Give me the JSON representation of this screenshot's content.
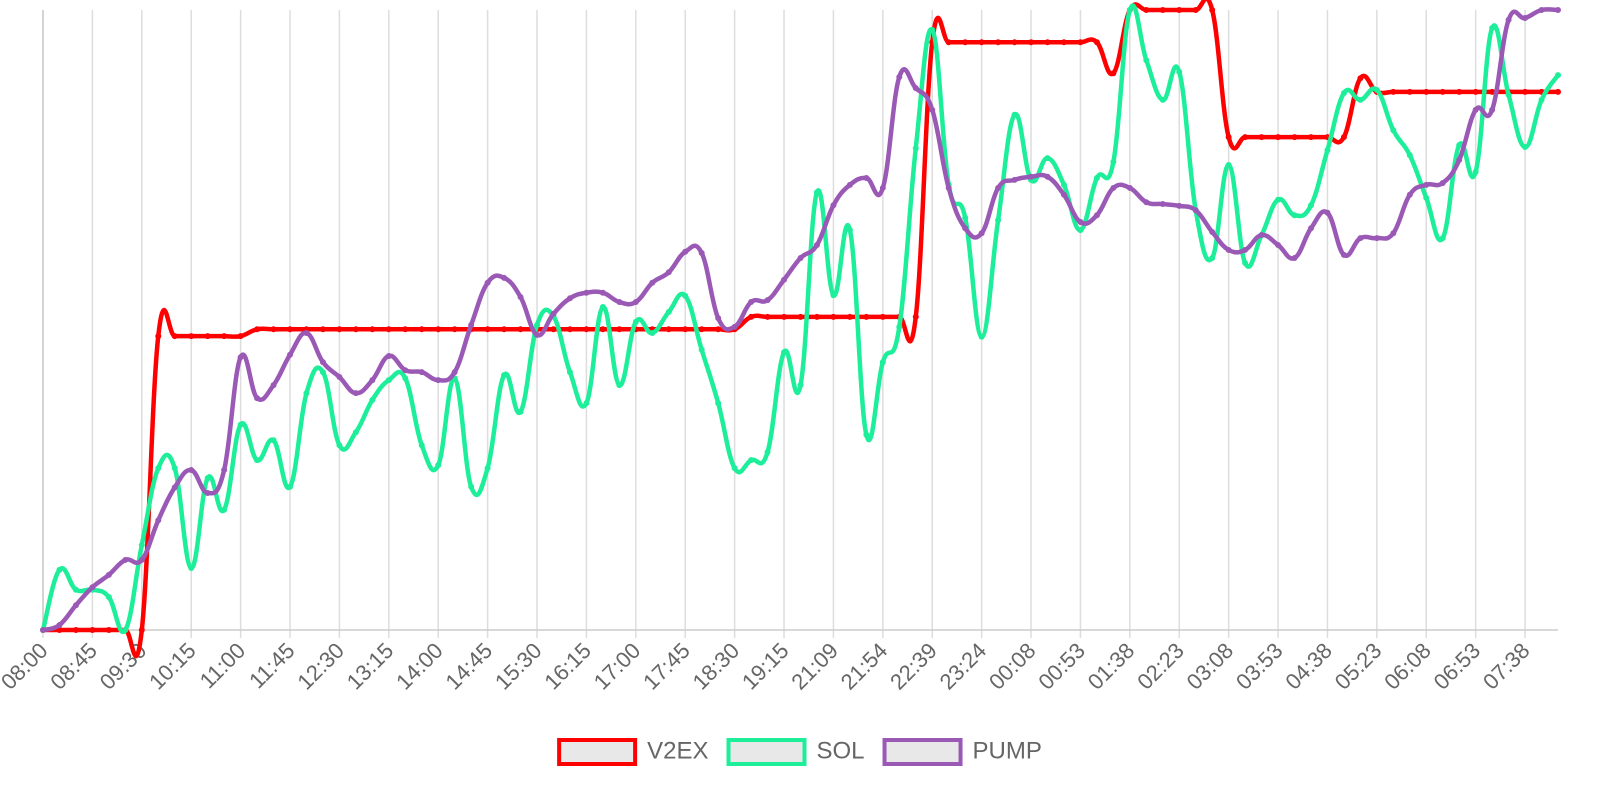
{
  "chart_data": {
    "type": "line",
    "categories": [
      "08:00",
      null,
      null,
      "08:45",
      null,
      null,
      "09:30",
      null,
      null,
      "10:15",
      null,
      null,
      "11:00",
      null,
      null,
      "11:45",
      null,
      null,
      "12:30",
      null,
      null,
      "13:15",
      null,
      null,
      "14:00",
      null,
      null,
      "14:45",
      null,
      null,
      "15:30",
      null,
      null,
      "16:15",
      null,
      null,
      "17:00",
      null,
      null,
      "17:45",
      null,
      null,
      "18:30",
      null,
      null,
      "19:15",
      null,
      null,
      "21:09",
      null,
      null,
      "21:54",
      null,
      null,
      "22:39",
      null,
      null,
      "23:24",
      null,
      null,
      "00:08",
      null,
      null,
      "00:53",
      null,
      null,
      "01:38",
      null,
      null,
      "02:23",
      null,
      null,
      "03:08",
      null,
      null,
      "03:53",
      null,
      null,
      "04:38",
      null,
      null,
      "05:23",
      null,
      null,
      "06:08",
      null,
      null,
      "06:53",
      null,
      null,
      "07:38",
      null,
      null
    ],
    "series": [
      {
        "name": "V2EX",
        "color": "#ff0000",
        "values": [
          0,
          0,
          0,
          0,
          0,
          0,
          0,
          47.4,
          47.4,
          47.4,
          47.4,
          47.4,
          47.4,
          48.5,
          48.5,
          48.5,
          48.5,
          48.5,
          48.5,
          48.5,
          48.5,
          48.5,
          48.5,
          48.5,
          48.5,
          48.5,
          48.5,
          48.5,
          48.5,
          48.5,
          48.5,
          48.5,
          48.5,
          48.5,
          48.5,
          48.5,
          48.5,
          48.5,
          48.5,
          48.5,
          48.5,
          48.5,
          48.5,
          50.5,
          50.5,
          50.5,
          50.5,
          50.5,
          50.5,
          50.5,
          50.5,
          50.5,
          50.5,
          50.5,
          94.8,
          94.8,
          94.8,
          94.8,
          94.8,
          94.8,
          94.8,
          94.8,
          94.8,
          94.8,
          94.8,
          89.8,
          100,
          100,
          100,
          100,
          100,
          100,
          79.5,
          79.5,
          79.5,
          79.5,
          79.5,
          79.5,
          79.5,
          79.5,
          89,
          86.8,
          86.8,
          86.8,
          86.8,
          86.8,
          86.8,
          86.8,
          86.8,
          86.8,
          86.8,
          86.8,
          86.8
        ]
      },
      {
        "name": "SOL",
        "color": "#1dee9a",
        "values": [
          0,
          9.7,
          6.5,
          6.5,
          5.3,
          0,
          13.7,
          26.1,
          26.1,
          10,
          24.5,
          19.4,
          33.1,
          27.4,
          30.6,
          23.1,
          38.2,
          41.6,
          29.8,
          31.9,
          37.1,
          40.3,
          40.6,
          29.8,
          26.6,
          40.6,
          23.1,
          26.1,
          41.1,
          35.2,
          49.2,
          50.6,
          41.6,
          36.6,
          52.1,
          39.5,
          49.7,
          47.9,
          51.3,
          53.9,
          45.2,
          36.6,
          26.1,
          27.4,
          28.7,
          44.8,
          39.5,
          70.6,
          54,
          64.5,
          31.5,
          43.2,
          48.9,
          77.7,
          96.8,
          71.8,
          66.5,
          47.3,
          66.1,
          83.1,
          72.6,
          76.1,
          71.8,
          64.5,
          72.9,
          75.5,
          100,
          91.9,
          85.5,
          90,
          67.7,
          60,
          75,
          59.2,
          63.7,
          69.4,
          66.9,
          68.5,
          77.4,
          86.6,
          85.5,
          87.1,
          80.6,
          76.6,
          69.7,
          63.2,
          78.2,
          73.9,
          97.1,
          86.3,
          77.9,
          85.5,
          89.5
        ]
      },
      {
        "name": "PUMP",
        "color": "#9b59b6",
        "values": [
          0,
          0.8,
          4,
          6.9,
          8.9,
          11.3,
          11.3,
          17.7,
          23,
          25.8,
          22.1,
          25.8,
          44,
          37.4,
          39.5,
          44.4,
          47.9,
          43.2,
          40.8,
          38.2,
          40.3,
          44.2,
          41.9,
          41.6,
          40.3,
          41.6,
          49.2,
          56,
          56.8,
          53.7,
          47.6,
          51,
          53.5,
          54.4,
          54.4,
          52.9,
          52.9,
          56,
          57.7,
          61,
          60.8,
          50.3,
          48.9,
          52.9,
          53.2,
          56.5,
          60,
          62.1,
          68.5,
          71.8,
          72.9,
          71.3,
          89.2,
          87.4,
          83.9,
          71.3,
          64.8,
          64,
          71.3,
          72.6,
          73.1,
          73.1,
          70.2,
          65.8,
          66.9,
          71.3,
          71.3,
          69,
          68.7,
          68.4,
          67.7,
          64.2,
          61.3,
          61.3,
          63.7,
          62.1,
          60,
          64.8,
          67.3,
          60.5,
          63.2,
          63.2,
          64,
          70.2,
          71.8,
          72.1,
          75.8,
          83.9,
          83.9,
          98.4,
          98.7,
          100,
          100
        ]
      }
    ],
    "ylim": [
      0,
      100
    ],
    "grid": true,
    "legend": "bottom"
  }
}
